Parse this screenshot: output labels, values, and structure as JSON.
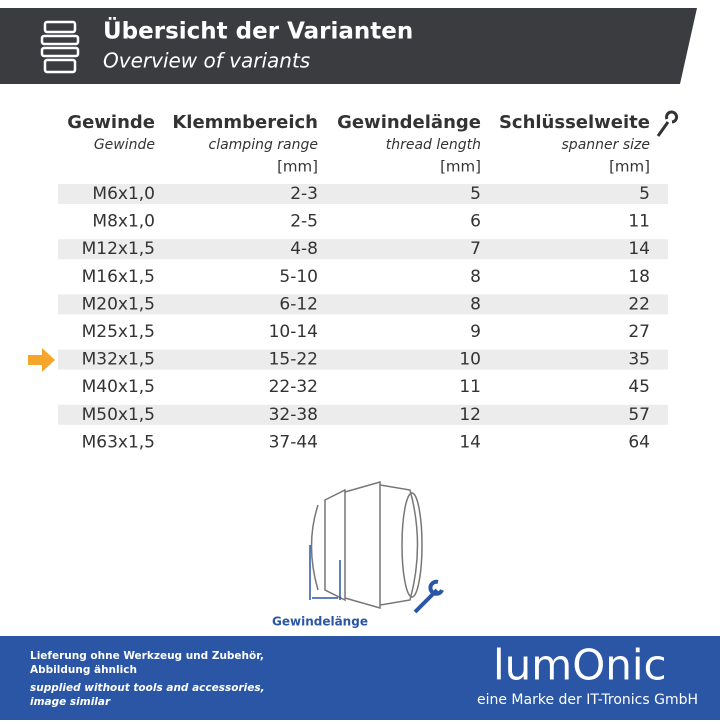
{
  "header": {
    "title": "Übersicht der Varianten",
    "subtitle": "Overview of variants"
  },
  "table": {
    "columns": [
      {
        "german": "Gewinde",
        "english": "Gewinde"
      },
      {
        "german": "Klemmbereich",
        "english": "clamping range",
        "unit": "[mm]"
      },
      {
        "german": "Gewindelänge",
        "english": "thread length",
        "unit": "[mm]"
      },
      {
        "german": "Schlüsselweite",
        "english": "spanner size",
        "unit": "[mm]"
      }
    ],
    "rows": [
      [
        "M6x1,0",
        "2-3",
        "5",
        "5"
      ],
      [
        "M8x1,0",
        "2-5",
        "6",
        "11"
      ],
      [
        "M12x1,5",
        "4-8",
        "7",
        "14"
      ],
      [
        "M16x1,5",
        "5-10",
        "8",
        "18"
      ],
      [
        "M20x1,5",
        "6-12",
        "8",
        "22"
      ],
      [
        "M25x1,5",
        "10-14",
        "9",
        "27"
      ],
      [
        "M32x1,5",
        "15-22",
        "10",
        "35"
      ],
      [
        "M40x1,5",
        "22-32",
        "11",
        "45"
      ],
      [
        "M50x1,5",
        "32-38",
        "12",
        "57"
      ],
      [
        "M63x1,5",
        "37-44",
        "14",
        "64"
      ]
    ]
  },
  "diagram": {
    "label": "Gewindelänge"
  },
  "footer": {
    "note_de_1": "Lieferung ohne Werkzeug und Zubehör,",
    "note_de_2": "Abbildung ähnlich",
    "note_en_1": "supplied without tools and accessories,",
    "note_en_2": "image similar",
    "brand": "lumOnic",
    "brand_tagline": "eine Marke der IT-Tronics GmbH"
  }
}
